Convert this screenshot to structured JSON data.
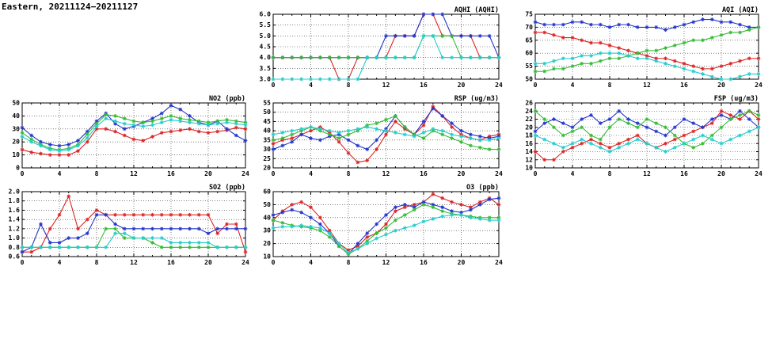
{
  "page_title": "Eastern, 20211124−20211127",
  "chart_data": [
    {
      "type": "line",
      "title": "AQHI (AQHI)",
      "xlabel": "",
      "ylabel": "",
      "xlim": [
        0,
        24
      ],
      "xticks": [
        0,
        4,
        8,
        12,
        16,
        20,
        24
      ],
      "ylim": [
        3.0,
        6.0
      ],
      "yticks": [
        3.0,
        3.5,
        4.0,
        4.5,
        5.0,
        5.5,
        6.0
      ],
      "ydecimals": 1,
      "grid": true,
      "series": [
        {
          "name": "red",
          "color": "#dd2222",
          "values": [
            4,
            4,
            4,
            4,
            4,
            4,
            4,
            3,
            3,
            4,
            4,
            4,
            4,
            5,
            5,
            5,
            6,
            6,
            5,
            5,
            5,
            5,
            4,
            4,
            4
          ]
        },
        {
          "name": "blue",
          "color": "#2233cc",
          "values": [
            4,
            4,
            4,
            4,
            4,
            4,
            4,
            4,
            4,
            4,
            4,
            4,
            5,
            5,
            5,
            5,
            6,
            6,
            6,
            5,
            5,
            5,
            5,
            5,
            4
          ]
        },
        {
          "name": "green",
          "color": "#33bb33",
          "values": [
            4,
            4,
            4,
            4,
            4,
            4,
            4,
            4,
            4,
            4,
            4,
            4,
            4,
            4,
            4,
            4,
            5,
            5,
            5,
            5,
            4,
            4,
            4,
            4,
            4
          ]
        },
        {
          "name": "cyan",
          "color": "#22cccc",
          "values": [
            3,
            3,
            3,
            3,
            3,
            3,
            3,
            3,
            3,
            3,
            4,
            4,
            4,
            4,
            4,
            4,
            5,
            5,
            4,
            4,
            4,
            4,
            4,
            4,
            4
          ]
        }
      ]
    },
    {
      "type": "line",
      "title": "AQI (AQI)",
      "xlabel": "",
      "ylabel": "",
      "xlim": [
        0,
        24
      ],
      "xticks": [
        0,
        4,
        8,
        12,
        16,
        20,
        24
      ],
      "ylim": [
        50,
        75
      ],
      "yticks": [
        50,
        55,
        60,
        65,
        70,
        75
      ],
      "ydecimals": 0,
      "grid": true,
      "series": [
        {
          "name": "red",
          "color": "#dd2222",
          "values": [
            68,
            68,
            67,
            66,
            66,
            65,
            64,
            64,
            63,
            62,
            61,
            60,
            59,
            58,
            58,
            57,
            56,
            55,
            54,
            54,
            55,
            56,
            57,
            58,
            58
          ]
        },
        {
          "name": "blue",
          "color": "#2233cc",
          "values": [
            72,
            71,
            71,
            71,
            72,
            72,
            71,
            71,
            70,
            71,
            71,
            70,
            70,
            70,
            69,
            70,
            71,
            72,
            73,
            73,
            72,
            72,
            71,
            70,
            70
          ]
        },
        {
          "name": "green",
          "color": "#33bb33",
          "values": [
            53,
            53,
            54,
            54,
            55,
            56,
            56,
            57,
            58,
            58,
            59,
            60,
            61,
            61,
            62,
            63,
            64,
            65,
            65,
            66,
            67,
            68,
            68,
            69,
            70
          ]
        },
        {
          "name": "cyan",
          "color": "#22cccc",
          "values": [
            56,
            56,
            57,
            58,
            58,
            59,
            59,
            60,
            60,
            60,
            59,
            58,
            58,
            57,
            56,
            55,
            54,
            53,
            52,
            51,
            50,
            50,
            51,
            52,
            52
          ]
        }
      ]
    },
    {
      "type": "line",
      "title": "NO2 (ppb)",
      "xlabel": "",
      "ylabel": "",
      "xlim": [
        0,
        24
      ],
      "xticks": [
        0,
        4,
        8,
        12,
        16,
        20,
        24
      ],
      "ylim": [
        0,
        50
      ],
      "yticks": [
        0,
        10,
        20,
        30,
        40,
        50
      ],
      "ydecimals": 0,
      "grid": true,
      "series": [
        {
          "name": "red",
          "color": "#dd2222",
          "values": [
            14,
            12,
            11,
            10,
            10,
            10,
            13,
            20,
            30,
            30,
            28,
            25,
            22,
            21,
            24,
            27,
            28,
            29,
            30,
            28,
            27,
            28,
            29,
            31,
            30
          ]
        },
        {
          "name": "blue",
          "color": "#2233cc",
          "values": [
            31,
            25,
            20,
            18,
            17,
            18,
            21,
            28,
            36,
            42,
            34,
            30,
            32,
            35,
            38,
            42,
            48,
            45,
            40,
            35,
            33,
            36,
            30,
            25,
            21
          ]
        },
        {
          "name": "green",
          "color": "#33bb33",
          "values": [
            27,
            22,
            18,
            15,
            14,
            15,
            18,
            26,
            34,
            41,
            40,
            38,
            36,
            35,
            36,
            38,
            40,
            38,
            37,
            36,
            35,
            36,
            37,
            36,
            35
          ]
        },
        {
          "name": "cyan",
          "color": "#22cccc",
          "values": [
            24,
            20,
            17,
            14,
            13,
            14,
            17,
            23,
            32,
            38,
            36,
            34,
            33,
            32,
            33,
            35,
            37,
            36,
            35,
            34,
            33,
            34,
            35,
            34,
            33
          ]
        }
      ]
    },
    {
      "type": "line",
      "title": "RSP (ug/m3)",
      "xlabel": "",
      "ylabel": "",
      "xlim": [
        0,
        24
      ],
      "xticks": [
        0,
        4,
        8,
        12,
        16,
        20,
        24
      ],
      "ylim": [
        20,
        55
      ],
      "yticks": [
        20,
        25,
        30,
        35,
        40,
        45,
        50,
        55
      ],
      "ydecimals": 0,
      "grid": true,
      "series": [
        {
          "name": "red",
          "color": "#dd2222",
          "values": [
            33,
            35,
            36,
            38,
            40,
            42,
            39,
            34,
            28,
            23,
            24,
            30,
            38,
            45,
            41,
            38,
            43,
            53,
            48,
            42,
            38,
            36,
            35,
            37,
            38
          ]
        },
        {
          "name": "blue",
          "color": "#2233cc",
          "values": [
            30,
            32,
            34,
            38,
            36,
            35,
            37,
            38,
            35,
            32,
            30,
            35,
            41,
            48,
            42,
            38,
            45,
            52,
            48,
            44,
            40,
            38,
            37,
            36,
            37
          ]
        },
        {
          "name": "green",
          "color": "#33bb33",
          "values": [
            35,
            36,
            38,
            40,
            42,
            40,
            38,
            36,
            38,
            40,
            43,
            44,
            46,
            48,
            42,
            38,
            36,
            40,
            38,
            36,
            34,
            32,
            31,
            30,
            30
          ]
        },
        {
          "name": "cyan",
          "color": "#22cccc",
          "values": [
            38,
            39,
            40,
            41,
            42,
            41,
            40,
            39,
            40,
            41,
            42,
            41,
            40,
            39,
            38,
            37,
            39,
            41,
            40,
            38,
            37,
            36,
            35,
            35,
            36
          ]
        }
      ]
    },
    {
      "type": "line",
      "title": "FSP (ug/m3)",
      "xlabel": "",
      "ylabel": "",
      "xlim": [
        0,
        24
      ],
      "xticks": [
        0,
        4,
        8,
        12,
        16,
        20,
        24
      ],
      "ylim": [
        10,
        26
      ],
      "yticks": [
        10,
        12,
        14,
        16,
        18,
        20,
        22,
        24,
        26
      ],
      "ydecimals": 0,
      "grid": true,
      "series": [
        {
          "name": "red",
          "color": "#dd2222",
          "values": [
            14,
            12,
            12,
            14,
            15,
            16,
            17,
            16,
            15,
            16,
            17,
            18,
            16,
            15,
            16,
            17,
            18,
            19,
            20,
            21,
            24,
            23,
            22,
            24,
            22
          ]
        },
        {
          "name": "blue",
          "color": "#2233cc",
          "values": [
            19,
            21,
            22,
            21,
            20,
            22,
            23,
            21,
            22,
            24,
            22,
            21,
            20,
            19,
            18,
            20,
            22,
            21,
            20,
            22,
            23,
            22,
            24,
            22,
            20
          ]
        },
        {
          "name": "green",
          "color": "#33bb33",
          "values": [
            24,
            22,
            20,
            18,
            19,
            20,
            18,
            17,
            20,
            22,
            21,
            20,
            22,
            21,
            20,
            18,
            16,
            15,
            16,
            18,
            20,
            22,
            23,
            24,
            23
          ]
        },
        {
          "name": "cyan",
          "color": "#22cccc",
          "values": [
            18,
            17,
            16,
            15,
            16,
            17,
            16,
            15,
            14,
            15,
            16,
            17,
            16,
            15,
            14,
            15,
            16,
            17,
            18,
            17,
            16,
            17,
            18,
            19,
            20
          ]
        }
      ]
    },
    {
      "type": "line",
      "title": "SO2 (ppb)",
      "xlabel": "",
      "ylabel": "",
      "xlim": [
        0,
        24
      ],
      "xticks": [
        0,
        4,
        8,
        12,
        16,
        20,
        24
      ],
      "ylim": [
        0.6,
        2.0
      ],
      "yticks": [
        0.6,
        0.8,
        1.0,
        1.2,
        1.4,
        1.6,
        1.8,
        2.0
      ],
      "ydecimals": 1,
      "grid": true,
      "series": [
        {
          "name": "red",
          "color": "#dd2222",
          "values": [
            0.7,
            0.7,
            0.8,
            1.2,
            1.5,
            1.9,
            1.2,
            1.4,
            1.6,
            1.5,
            1.5,
            1.5,
            1.5,
            1.5,
            1.5,
            1.5,
            1.5,
            1.5,
            1.5,
            1.5,
            1.5,
            1.1,
            1.3,
            1.3,
            0.7
          ]
        },
        {
          "name": "blue",
          "color": "#2233cc",
          "values": [
            0.7,
            0.8,
            1.3,
            0.9,
            0.9,
            1.0,
            1.0,
            1.1,
            1.5,
            1.5,
            1.3,
            1.2,
            1.2,
            1.2,
            1.2,
            1.2,
            1.2,
            1.2,
            1.2,
            1.2,
            1.1,
            1.2,
            1.2,
            1.2,
            1.2
          ]
        },
        {
          "name": "green",
          "color": "#33bb33",
          "values": [
            0.8,
            0.8,
            0.8,
            0.8,
            0.8,
            0.8,
            0.8,
            0.8,
            0.8,
            1.2,
            1.2,
            1.0,
            1.0,
            1.0,
            0.9,
            0.8,
            0.8,
            0.8,
            0.8,
            0.8,
            0.8,
            0.8,
            0.8,
            0.8,
            0.8
          ]
        },
        {
          "name": "cyan",
          "color": "#22cccc",
          "values": [
            0.8,
            0.8,
            0.8,
            0.8,
            0.8,
            0.8,
            0.8,
            0.8,
            0.8,
            0.8,
            1.1,
            1.1,
            1.0,
            1.0,
            1.0,
            1.0,
            0.9,
            0.9,
            0.9,
            0.9,
            0.9,
            0.8,
            0.8,
            0.8,
            0.8
          ]
        }
      ]
    },
    {
      "type": "line",
      "title": "O3 (ppb)",
      "xlabel": "",
      "ylabel": "",
      "xlim": [
        0,
        24
      ],
      "xticks": [
        0,
        4,
        8,
        12,
        16,
        20,
        24
      ],
      "ylim": [
        10,
        60
      ],
      "yticks": [
        10,
        20,
        30,
        40,
        50,
        60
      ],
      "ydecimals": 0,
      "grid": true,
      "series": [
        {
          "name": "red",
          "color": "#dd2222",
          "values": [
            38,
            45,
            50,
            52,
            48,
            40,
            30,
            20,
            15,
            18,
            25,
            28,
            35,
            45,
            48,
            50,
            52,
            58,
            55,
            52,
            50,
            48,
            52,
            55,
            50
          ]
        },
        {
          "name": "blue",
          "color": "#2233cc",
          "values": [
            42,
            44,
            46,
            44,
            40,
            35,
            28,
            18,
            12,
            20,
            28,
            35,
            42,
            48,
            50,
            48,
            52,
            50,
            48,
            45,
            44,
            46,
            50,
            54,
            55
          ]
        },
        {
          "name": "green",
          "color": "#33bb33",
          "values": [
            38,
            36,
            34,
            33,
            32,
            30,
            25,
            18,
            12,
            16,
            22,
            28,
            32,
            38,
            42,
            46,
            50,
            48,
            45,
            43,
            42,
            41,
            40,
            40,
            40
          ]
        },
        {
          "name": "cyan",
          "color": "#22cccc",
          "values": [
            32,
            33,
            33,
            34,
            33,
            32,
            28,
            20,
            13,
            16,
            20,
            24,
            27,
            30,
            32,
            34,
            37,
            39,
            41,
            42,
            42,
            40,
            39,
            38,
            38
          ]
        }
      ]
    }
  ]
}
